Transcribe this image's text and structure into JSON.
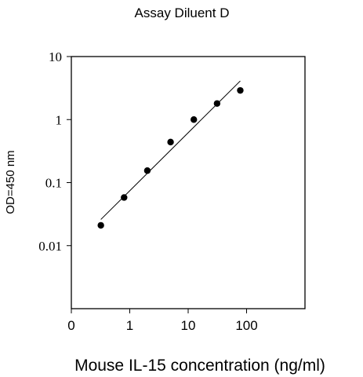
{
  "chart_data": {
    "type": "scatter",
    "title": "Assay Diluent D",
    "xlabel": "Mouse IL-15 concentration (ng/ml)",
    "ylabel": "OD=450 nm",
    "x_scale": "log",
    "y_scale": "log",
    "x_ticks": [
      {
        "value": 0.1,
        "label": "0"
      },
      {
        "value": 1,
        "label": "1"
      },
      {
        "value": 10,
        "label": "10"
      },
      {
        "value": 100,
        "label": "100"
      }
    ],
    "y_ticks": [
      {
        "value": 0.01,
        "label": "0.01"
      },
      {
        "value": 0.1,
        "label": "0.1"
      },
      {
        "value": 1,
        "label": "1"
      },
      {
        "value": 10,
        "label": "10"
      }
    ],
    "xlim": [
      0.1,
      1000
    ],
    "ylim": [
      0.001,
      10
    ],
    "grid": false,
    "series": [
      {
        "points": [
          {
            "x": 0.32,
            "y": 0.021
          },
          {
            "x": 0.8,
            "y": 0.058
          },
          {
            "x": 2.0,
            "y": 0.155
          },
          {
            "x": 5.0,
            "y": 0.44
          },
          {
            "x": 12.5,
            "y": 1.0
          },
          {
            "x": 31.25,
            "y": 1.8
          },
          {
            "x": 78.0,
            "y": 2.9
          }
        ]
      }
    ],
    "fit_line": {
      "x": [
        0.32,
        78.0
      ],
      "y": [
        0.026,
        4.1
      ]
    }
  }
}
